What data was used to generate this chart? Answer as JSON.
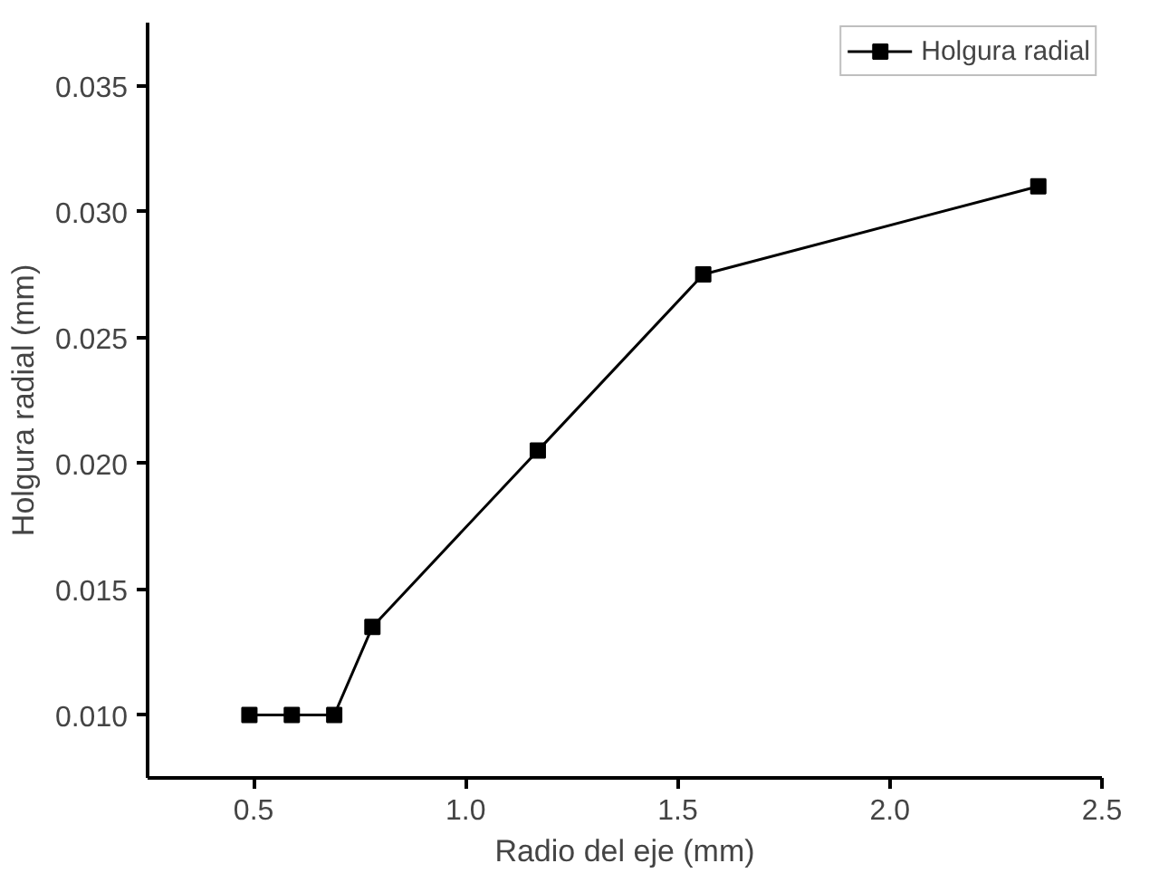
{
  "chart_data": {
    "type": "line",
    "xlabel": "Radio del eje (mm)",
    "ylabel": "Holgura radial (mm)",
    "x": [
      0.49,
      0.59,
      0.69,
      0.78,
      1.17,
      1.56,
      2.35
    ],
    "series": [
      {
        "name": "Holgura radial",
        "color": "#000000",
        "values": [
          0.01,
          0.01,
          0.01,
          0.0135,
          0.0205,
          0.0275,
          0.031
        ]
      }
    ],
    "xlim": [
      0.25,
      2.5
    ],
    "xticks": [
      0.5,
      {
        "value": 1,
        "label": "1.0"
      },
      1.5,
      {
        "value": 2,
        "label": "2.0"
      },
      2.5
    ],
    "ylim": [
      0.0075,
      0.0375
    ],
    "yticks": [
      {
        "value": 0.01,
        "label": "0.010"
      },
      0.015,
      {
        "value": 0.02,
        "label": "0.020"
      },
      0.025,
      {
        "value": 0.03,
        "label": "0.030"
      },
      0.035
    ],
    "marker": "square",
    "line_style": "solid",
    "legend": "top right",
    "grid": false
  }
}
